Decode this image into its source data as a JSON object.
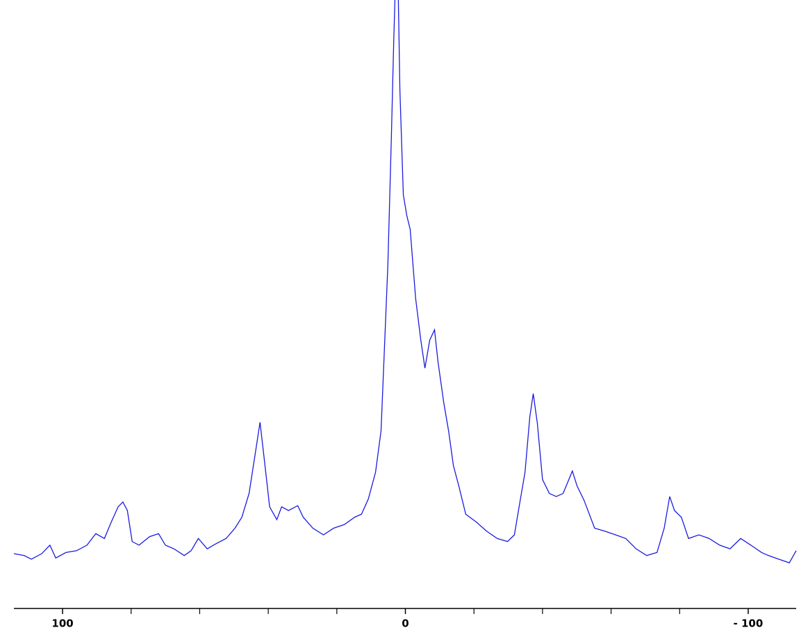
{
  "chart_data": {
    "type": "line",
    "x": [
      114.2,
      111.2,
      109.1,
      106.1,
      103.7,
      102.0,
      99.0,
      95.9,
      92.9,
      90.3,
      87.8,
      85.8,
      83.8,
      82.4,
      81.1,
      79.7,
      77.7,
      74.6,
      72.0,
      70.0,
      67.5,
      64.5,
      62.5,
      60.4,
      57.8,
      55.4,
      52.3,
      49.7,
      47.7,
      45.6,
      44.0,
      42.4,
      41.2,
      39.6,
      37.5,
      36.1,
      34.1,
      31.4,
      29.8,
      27.0,
      23.9,
      20.9,
      17.8,
      14.8,
      12.8,
      10.8,
      8.7,
      7.1,
      6.1,
      5.1,
      4.1,
      3.4,
      2.8,
      2.2,
      1.6,
      0.6,
      -0.4,
      -1.4,
      -3.0,
      -4.5,
      -5.7,
      -7.1,
      -8.5,
      -9.5,
      -11.2,
      -12.6,
      -14.0,
      -15.6,
      -17.6,
      -20.7,
      -23.7,
      -26.8,
      -29.8,
      -31.8,
      -33.5,
      -34.9,
      -36.3,
      -37.3,
      -38.5,
      -40.0,
      -42.0,
      -44.0,
      -46.0,
      -47.7,
      -48.7,
      -50.1,
      -52.1,
      -55.2,
      -58.2,
      -61.3,
      -64.3,
      -67.3,
      -70.4,
      -73.4,
      -75.5,
      -77.1,
      -78.5,
      -80.5,
      -82.6,
      -85.6,
      -88.6,
      -91.7,
      -94.7,
      -97.8,
      -100.8,
      -103.9,
      -105.9,
      -108.9,
      -112.0,
      -114.0
    ],
    "series": [
      {
        "color": "#1a1ae0",
        "values": [
          9.0,
          8.7,
          8.1,
          9.0,
          10.4,
          8.3,
          9.2,
          9.5,
          10.4,
          12.3,
          11.5,
          14.2,
          16.7,
          17.5,
          16.1,
          11.0,
          10.4,
          11.8,
          12.3,
          10.4,
          9.8,
          8.7,
          9.5,
          11.5,
          9.8,
          10.6,
          11.5,
          13.2,
          15.0,
          18.9,
          24.7,
          30.6,
          24.7,
          16.7,
          14.6,
          16.7,
          16.1,
          16.9,
          15.0,
          13.2,
          12.1,
          13.2,
          13.8,
          15.0,
          15.5,
          18.0,
          22.4,
          29.2,
          42.9,
          56.6,
          77.2,
          93.2,
          105,
          105,
          85.2,
          68.0,
          64.6,
          62.3,
          50.9,
          44.1,
          39.5,
          44.1,
          45.8,
          40.6,
          33.8,
          29.2,
          23.5,
          20.1,
          15.5,
          14.2,
          12.7,
          11.5,
          11.0,
          12.1,
          17.8,
          22.4,
          31.5,
          35.3,
          30.4,
          21.2,
          18.9,
          18.4,
          18.9,
          21.2,
          22.6,
          20.1,
          17.8,
          13.2,
          12.7,
          12.1,
          11.5,
          9.8,
          8.7,
          9.2,
          13.2,
          18.4,
          16.1,
          15.0,
          11.5,
          12.1,
          11.5,
          10.4,
          9.8,
          11.5,
          10.4,
          9.2,
          8.7,
          8.1,
          7.5,
          9.5
        ]
      }
    ],
    "xlim": [
      114.2,
      -114.0
    ],
    "ylim": [
      0,
      100
    ],
    "xticks": [
      100,
      0,
      {
        "value": -100,
        "label": "- 100"
      }
    ],
    "xminorticks": [
      80,
      60,
      40,
      20,
      -20,
      -40,
      -60,
      -80
    ]
  }
}
